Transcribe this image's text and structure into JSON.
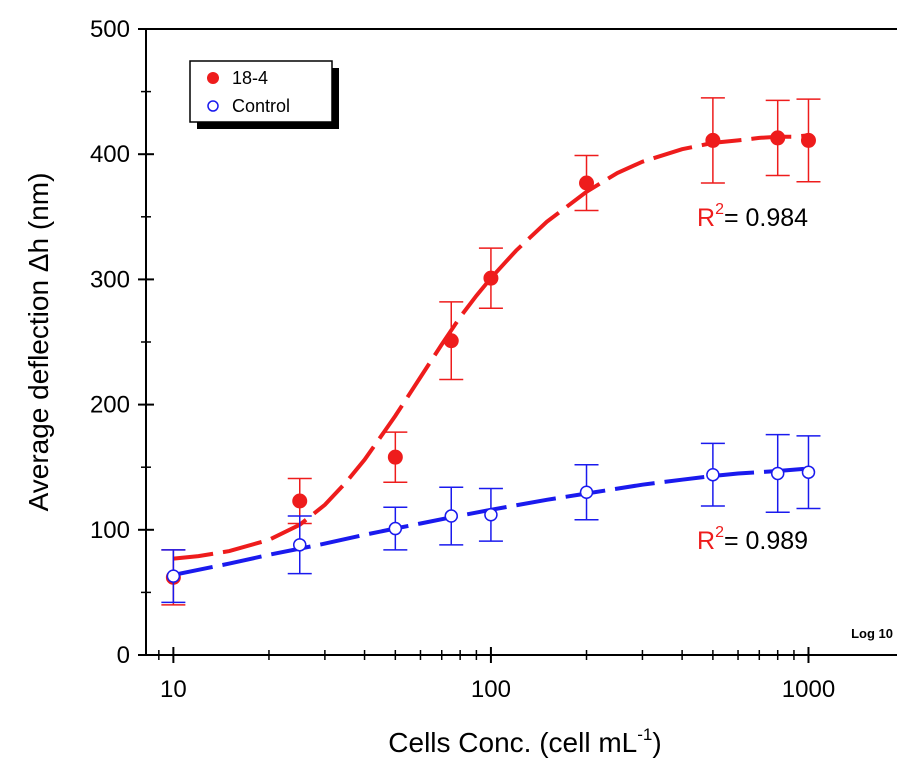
{
  "chart_data": {
    "type": "scatter",
    "title": "",
    "xlabel": "Cells Conc. (cell mL",
    "xlabel_sup": "-1",
    "xlabel_close": ")",
    "ylabel": "Average deflection Δh (nm)",
    "xscale": "log",
    "scale_note": "Log 10",
    "xlim": [
      8.2,
      1900
    ],
    "ylim": [
      0,
      500
    ],
    "xticks": [
      10,
      100,
      1000
    ],
    "xtick_labels": [
      "10",
      "100",
      "1000"
    ],
    "yticks": [
      0,
      100,
      200,
      300,
      400,
      500
    ],
    "ytick_labels": [
      "0",
      "100",
      "200",
      "300",
      "400",
      "500"
    ],
    "legend": {
      "placement": "top-left"
    },
    "series": [
      {
        "name": "18-4",
        "color": "#ee1c1c",
        "marker": "filled-circle",
        "x": [
          10,
          25,
          50,
          75,
          100,
          200,
          500,
          800,
          1000
        ],
        "y": [
          62,
          123,
          158,
          251,
          301,
          377,
          411,
          413,
          411
        ],
        "err": [
          22,
          18,
          20,
          31,
          24,
          22,
          34,
          30,
          33
        ],
        "fit_x": [
          10,
          12,
          15,
          20,
          25,
          30,
          35,
          40,
          50,
          60,
          70,
          80,
          90,
          100,
          120,
          150,
          200,
          250,
          300,
          400,
          500,
          600,
          700,
          800,
          900,
          1000
        ],
        "fit_y": [
          77,
          79,
          83,
          92,
          104,
          120,
          138,
          156,
          191,
          222,
          248,
          270,
          287,
          301,
          323,
          346,
          370,
          385,
          394,
          404,
          409,
          411,
          413,
          414,
          414,
          415
        ],
        "r2_prefix": "R",
        "r2_sup": "2",
        "r2_value": "= 0.984"
      },
      {
        "name": "Control",
        "color": "#1a1aee",
        "marker": "open-circle",
        "x": [
          10,
          25,
          50,
          75,
          100,
          200,
          500,
          800,
          1000
        ],
        "y": [
          63,
          88,
          101,
          111,
          112,
          130,
          144,
          145,
          146
        ],
        "err": [
          21,
          23,
          17,
          23,
          21,
          22,
          25,
          31,
          29
        ],
        "fit_x": [
          10,
          15,
          20,
          30,
          40,
          50,
          60,
          75,
          100,
          150,
          200,
          300,
          400,
          500,
          600,
          800,
          1000
        ],
        "fit_y": [
          64,
          73,
          80,
          89,
          96,
          101,
          105,
          110,
          116,
          124,
          129,
          136,
          140,
          143,
          145,
          147,
          149
        ],
        "r2_prefix": "R",
        "r2_sup": "2",
        "r2_value": "= 0.989"
      }
    ]
  }
}
